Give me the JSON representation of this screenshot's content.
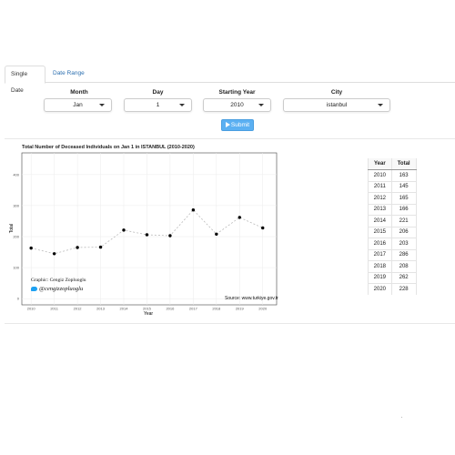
{
  "tabs": [
    {
      "label": "Single Date",
      "active": true
    },
    {
      "label": "Date Range",
      "active": false
    }
  ],
  "controls": {
    "month": {
      "label": "Month",
      "value": "Jan"
    },
    "day": {
      "label": "Day",
      "value": "1"
    },
    "year": {
      "label": "Starting Year",
      "value": "2010"
    },
    "city": {
      "label": "City",
      "value": "istanbul"
    },
    "submit_label": "Submit"
  },
  "chart": {
    "title": "Total Number of Deceased Individuals on Jan 1 in ISTANBUL (2010-2020)",
    "credit_line": "Graphic: Cengiz Zopluoglu",
    "credit_handle": "@cengizzopluoglu",
    "source": "Source: www.turkiye.gov.tr"
  },
  "chart_data": {
    "type": "line",
    "x": [
      2010,
      2011,
      2012,
      2013,
      2014,
      2015,
      2016,
      2017,
      2018,
      2019,
      2020
    ],
    "values": [
      163,
      145,
      165,
      166,
      221,
      206,
      203,
      286,
      208,
      262,
      228
    ],
    "xlabel": "Year",
    "ylabel": "Total",
    "xlim": [
      2009.6,
      2020.6
    ],
    "ylim": [
      -20,
      470
    ],
    "yticks": [
      0,
      100,
      200,
      300,
      400
    ],
    "xticks": [
      2010,
      2011,
      2012,
      2013,
      2014,
      2015,
      2016,
      2017,
      2018,
      2019,
      2020
    ],
    "grid": true,
    "line_style": "dashed",
    "line_color": "#bbbbbb",
    "point_color": "#000000"
  },
  "table": {
    "headers": [
      "Year",
      "Total"
    ],
    "rows": [
      [
        "2010",
        "163"
      ],
      [
        "2011",
        "145"
      ],
      [
        "2012",
        "165"
      ],
      [
        "2013",
        "166"
      ],
      [
        "2014",
        "221"
      ],
      [
        "2015",
        "206"
      ],
      [
        "2016",
        "203"
      ],
      [
        "2017",
        "286"
      ],
      [
        "2018",
        "208"
      ],
      [
        "2019",
        "262"
      ],
      [
        "2020",
        "228"
      ]
    ]
  }
}
